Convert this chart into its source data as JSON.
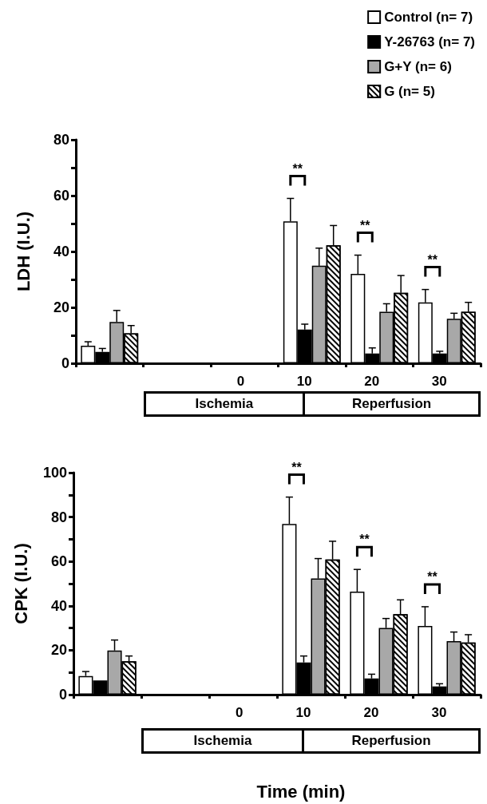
{
  "chart_data": [
    {
      "type": "bar",
      "ylabel": "LDH (I.U.)",
      "categories": [
        null,
        null,
        "0",
        "10",
        "20",
        "30"
      ],
      "ylim": [
        0,
        80
      ],
      "yticks": [
        0,
        {
          "value": 10,
          "label": null
        },
        20,
        {
          "value": 30,
          "label": null
        },
        40,
        {
          "value": 50,
          "label": null
        },
        60,
        {
          "value": 70,
          "label": null
        },
        80
      ],
      "legend": "top right",
      "grid": false,
      "series": [
        {
          "name": "Control (n= 7)",
          "color": "#ffffff",
          "values": [
            6.3,
            null,
            null,
            50.8,
            32,
            21.8
          ],
          "errors": [
            [
              6.3,
              7.7
            ],
            null,
            null,
            [
              50.8,
              59
            ],
            [
              32,
              38.7
            ],
            [
              21.8,
              26.4
            ]
          ]
        },
        {
          "name": "Y-26763 (n= 7)",
          "color": "#000000",
          "values": [
            4.1,
            null,
            null,
            12.1,
            3.5,
            3.5
          ],
          "errors": [
            [
              4.1,
              5.3
            ],
            null,
            null,
            [
              12.1,
              14
            ],
            [
              3.5,
              5.5
            ],
            [
              3.5,
              4.3
            ]
          ]
        },
        {
          "name": "G+Y (n= 6)",
          "color": "#a8a8a8",
          "values": [
            14.8,
            null,
            null,
            34.9,
            18.4,
            15.9
          ],
          "errors": [
            [
              14.8,
              18.9
            ],
            null,
            null,
            [
              34.9,
              41.2
            ],
            [
              18.4,
              21.3
            ],
            [
              15.9,
              17.9
            ]
          ]
        },
        {
          "name": "G (n= 5)",
          "color": "#ffffff",
          "values": [
            10.7,
            null,
            null,
            42.2,
            25.2,
            18.4
          ],
          "errors": [
            [
              10.7,
              13.5
            ],
            null,
            null,
            [
              42.2,
              49.3
            ],
            [
              25.2,
              31.4
            ],
            [
              18.4,
              21.8
            ]
          ]
        }
      ],
      "annotations": [
        "**",
        "**",
        "**",
        "Ischemia",
        "Reperfusion"
      ]
    },
    {
      "type": "bar",
      "ylabel": "CPK (I.U.)",
      "xlabel": "Time (min)",
      "categories": [
        null,
        null,
        "0",
        "10",
        "20",
        "30"
      ],
      "ylim": [
        0,
        100
      ],
      "yticks": [
        0,
        {
          "value": 10,
          "label": null
        },
        20,
        {
          "value": 30,
          "label": null
        },
        40,
        {
          "value": 50,
          "label": null
        },
        60,
        {
          "value": 70,
          "label": null
        },
        80,
        {
          "value": 90,
          "label": null
        },
        100
      ],
      "grid": false,
      "series": [
        {
          "color": "#ffffff",
          "values": [
            8.4,
            null,
            null,
            76.9,
            46.4,
            30.9
          ],
          "errors": [
            [
              8.4,
              10.4
            ],
            null,
            null,
            [
              76.9,
              89
            ],
            [
              46.4,
              56.4
            ],
            [
              30.9,
              39.6
            ]
          ]
        },
        {
          "color": "#000000",
          "values": [
            6.4,
            null,
            null,
            14.5,
            7.3,
            3.7
          ],
          "errors": [
            null,
            null,
            null,
            [
              14.5,
              17.4
            ],
            [
              7.3,
              9.2
            ],
            [
              3.7,
              4.9
            ]
          ]
        },
        {
          "color": "#a8a8a8",
          "values": [
            19.9,
            null,
            null,
            52.3,
            30,
            24.1
          ],
          "errors": [
            [
              19.9,
              24.6
            ],
            null,
            null,
            [
              52.3,
              61.3
            ],
            [
              30,
              34.3
            ],
            [
              24.1,
              28.2
            ]
          ]
        },
        {
          "color": "#ffffff",
          "values": [
            15,
            null,
            null,
            60.9,
            36.2,
            23.5
          ],
          "errors": [
            [
              15,
              17.4
            ],
            null,
            null,
            [
              60.9,
              69.1
            ],
            [
              36.2,
              42.7
            ],
            [
              23.5,
              27
            ]
          ]
        }
      ],
      "annotations": [
        "**",
        "**",
        "**",
        "Ischemia",
        "Reperfusion"
      ]
    }
  ]
}
